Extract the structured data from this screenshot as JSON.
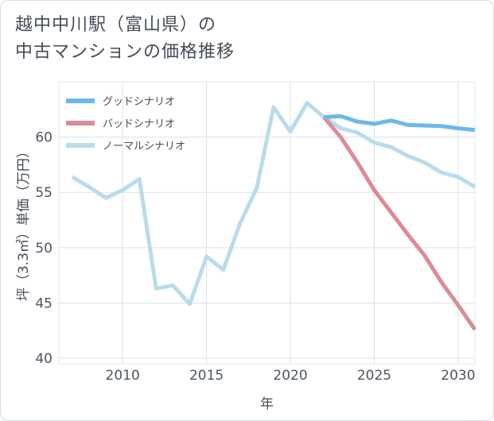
{
  "title_lines": [
    "越中中川駅（富山県）の",
    "中古マンションの価格推移"
  ],
  "chart_data": {
    "type": "line",
    "title": "越中中川駅（富山県）の中古マンションの価格推移",
    "xlabel": "年",
    "ylabel": "坪（3.3㎡）単価（万円）",
    "xlim": [
      2006.2,
      2031
    ],
    "ylim": [
      39.5,
      65
    ],
    "xticks": [
      2010,
      2015,
      2020,
      2025,
      2030
    ],
    "yticks": [
      40,
      45,
      50,
      55,
      60
    ],
    "grid": true,
    "legend_position": "top-left",
    "series": [
      {
        "name": "グッドシナリオ",
        "color": "#6cb8ec",
        "x": [
          2022,
          2023,
          2024,
          2025,
          2026,
          2027,
          2028,
          2029,
          2030,
          2031
        ],
        "y": [
          61.8,
          61.9,
          61.4,
          61.2,
          61.5,
          61.1,
          61.05,
          61.0,
          60.8,
          60.65
        ]
      },
      {
        "name": "バッドシナリオ",
        "color": "#dc8c94",
        "x": [
          2022,
          2023,
          2024,
          2025,
          2026,
          2027,
          2028,
          2029,
          2030,
          2031
        ],
        "y": [
          61.8,
          60.0,
          57.7,
          55.2,
          53.2,
          51.2,
          49.3,
          46.9,
          44.8,
          42.6
        ]
      },
      {
        "name": "ノーマルシナリオ",
        "color": "#b8dcea",
        "x": [
          2007,
          2008,
          2009,
          2010,
          2011,
          2012,
          2013,
          2014,
          2015,
          2016,
          2017,
          2018,
          2019,
          2020,
          2021,
          2022,
          2023,
          2024,
          2025,
          2026,
          2027,
          2028,
          2029,
          2030,
          2031
        ],
        "y": [
          56.4,
          55.5,
          54.5,
          55.2,
          56.2,
          46.3,
          46.6,
          44.9,
          49.2,
          48.0,
          52.2,
          55.4,
          62.7,
          60.5,
          63.1,
          61.8,
          60.8,
          60.4,
          59.5,
          59.1,
          58.3,
          57.7,
          56.8,
          56.4,
          55.5
        ]
      }
    ]
  }
}
